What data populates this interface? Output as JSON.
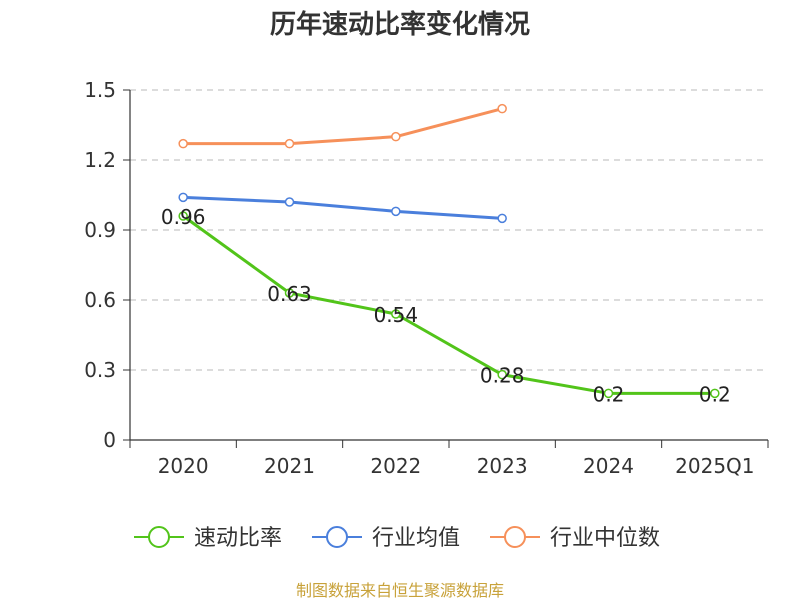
{
  "chart_data": {
    "type": "line",
    "title": "历年速动比率变化情况",
    "xlabel": "",
    "ylabel": "",
    "categories": [
      "2020",
      "2021",
      "2022",
      "2023",
      "2024",
      "2025Q1"
    ],
    "ylim": [
      0,
      1.5
    ],
    "yticks": [
      "0",
      "0.3",
      "0.6",
      "0.9",
      "1.2",
      "1.5"
    ],
    "grid": true,
    "legend_position": "bottom",
    "series": [
      {
        "name": "速动比率",
        "color": "#52c41a",
        "values": [
          0.96,
          0.63,
          0.54,
          0.28,
          0.2,
          0.2
        ],
        "labels": [
          "0.96",
          "0.63",
          "0.54",
          "0.28",
          "0.2",
          "0.2"
        ]
      },
      {
        "name": "行业均值",
        "color": "#4a7fdc",
        "values": [
          1.04,
          1.02,
          0.98,
          0.95,
          null,
          null
        ]
      },
      {
        "name": "行业中位数",
        "color": "#f6905a",
        "values": [
          1.27,
          1.27,
          1.3,
          1.42,
          null,
          null
        ]
      }
    ]
  },
  "source": "制图数据来自恒生聚源数据库"
}
